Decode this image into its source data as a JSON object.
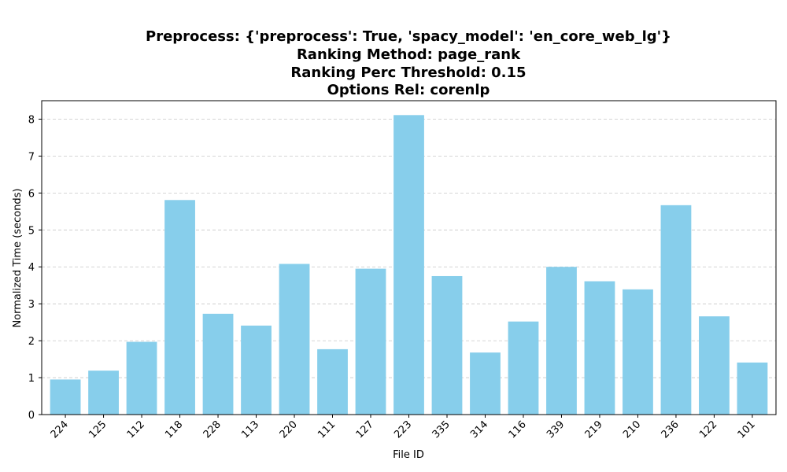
{
  "chart_data": {
    "type": "bar",
    "title_lines": [
      "Preprocess: {'preprocess': True, 'spacy_model': 'en_core_web_lg'}",
      "Ranking Method: page_rank",
      "Ranking Perc Threshold: 0.15",
      "Options Rel: corenlp"
    ],
    "xlabel": "File ID",
    "ylabel": "Normalized Time (seconds)",
    "categories": [
      "224",
      "125",
      "112",
      "118",
      "228",
      "113",
      "220",
      "111",
      "127",
      "223",
      "335",
      "314",
      "116",
      "339",
      "219",
      "210",
      "236",
      "122",
      "101"
    ],
    "values": [
      0.95,
      1.19,
      1.97,
      5.81,
      2.73,
      2.41,
      4.08,
      1.77,
      3.95,
      8.11,
      3.75,
      1.68,
      2.52,
      4.0,
      3.61,
      3.39,
      5.67,
      2.66,
      1.41
    ],
    "ylim": [
      0,
      8.5
    ],
    "yticks": [
      0,
      1,
      2,
      3,
      4,
      5,
      6,
      7,
      8
    ],
    "grid": "y-dashed",
    "bar_color": "#87ceeb",
    "grid_color": "#c8c8c8",
    "xtick_rotation": 45
  }
}
